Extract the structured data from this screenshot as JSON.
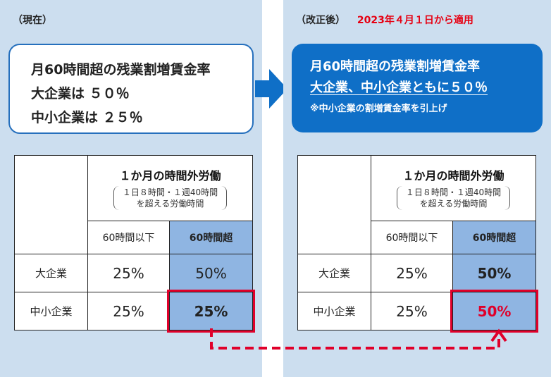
{
  "colors": {
    "panel_background": "#ccdeef",
    "primary_blue": "#0f6fc7",
    "box_border": "#2670bd",
    "header_cell_blue": "#8fb5e2",
    "highlight_red": "#e0002a",
    "date_red": "#e60012"
  },
  "before": {
    "heading": "（現在）",
    "summary": {
      "line1": "月60時間超の残業割増賃金率",
      "line2": "大企業は ５０％",
      "line3": "中小企業は ２５％"
    },
    "table": {
      "title": "１か月の時間外労働",
      "note_line1": "１日８時間・１週40時間",
      "note_line2": "を超える労働時間",
      "col_under": "60時間以下",
      "col_over": "60時間超",
      "rows": [
        {
          "label": "大企業",
          "under": "25%",
          "over": "50%"
        },
        {
          "label": "中小企業",
          "under": "25%",
          "over": "25%"
        }
      ]
    }
  },
  "after": {
    "heading": "（改正後）",
    "effective_date": "2023年４月１日から適用",
    "summary": {
      "line1": "月60時間超の残業割増賃金率",
      "line2": "大企業、中小企業ともに５０％",
      "note": "※中小企業の割増賃金率を引上げ"
    },
    "table": {
      "title": "１か月の時間外労働",
      "note_line1": "１日８時間・１週40時間",
      "note_line2": "を超える労働時間",
      "col_under": "60時間以下",
      "col_over": "60時間超",
      "rows": [
        {
          "label": "大企業",
          "under": "25%",
          "over": "50%"
        },
        {
          "label": "中小企業",
          "under": "25%",
          "over": "50%"
        }
      ]
    }
  }
}
